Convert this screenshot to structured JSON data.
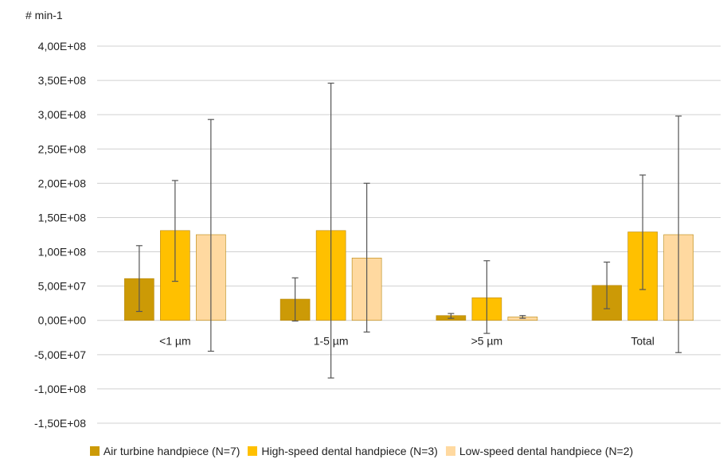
{
  "chart_data": {
    "type": "bar",
    "ylabel": "# min-1",
    "categories": [
      "<1 µm",
      "1-5 µm",
      ">5 µm",
      "Total"
    ],
    "ylim": [
      -150000000,
      400000000
    ],
    "yticks": [
      400000000,
      350000000,
      300000000,
      250000000,
      200000000,
      150000000,
      100000000,
      50000000,
      0,
      -50000000,
      -100000000,
      -150000000
    ],
    "ytick_labels": [
      "4,00E+08",
      "3,50E+08",
      "3,00E+08",
      "2,50E+08",
      "2,00E+08",
      "1,50E+08",
      "1,00E+08",
      "5,00E+07",
      "0,00E+00",
      "-5,00E+07",
      "-1,00E+08",
      "-1,50E+08"
    ],
    "grid": true,
    "legend_position": "bottom",
    "series": [
      {
        "name": "Air turbine handpiece (N=7)",
        "color": "#CC9A06",
        "values": [
          61000000,
          31000000,
          7000000,
          51000000
        ],
        "error_low": [
          13000000,
          -1000000,
          3000000,
          17000000
        ],
        "error_high": [
          109000000,
          62000000,
          10000000,
          85000000
        ]
      },
      {
        "name": "High-speed dental handpiece (N=3)",
        "color": "#FFC000",
        "values": [
          131000000,
          131000000,
          33000000,
          129000000
        ],
        "error_low": [
          57000000,
          -84000000,
          -19000000,
          45000000
        ],
        "error_high": [
          204000000,
          346000000,
          87000000,
          212000000
        ]
      },
      {
        "name": "Low-speed dental handpiece (N=2)",
        "color": "#FFD9A0",
        "values": [
          125000000,
          91000000,
          5000000,
          125000000
        ],
        "error_low": [
          -45000000,
          -17000000,
          3000000,
          -47000000
        ],
        "error_high": [
          293000000,
          200000000,
          7000000,
          298000000
        ]
      }
    ]
  }
}
